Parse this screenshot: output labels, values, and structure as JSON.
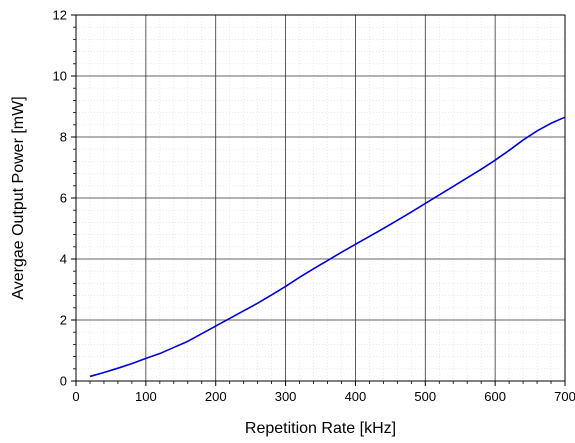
{
  "chart_data": {
    "type": "line",
    "title": "",
    "xlabel": "Repetition Rate [kHz]",
    "ylabel": "Avergae Output Power [mW]",
    "xlim": [
      0,
      700
    ],
    "ylim": [
      0,
      12
    ],
    "x_ticks": [
      0,
      100,
      200,
      300,
      400,
      500,
      600,
      700
    ],
    "y_ticks": [
      0,
      2,
      4,
      6,
      8,
      10,
      12
    ],
    "x_tick_labels": [
      "0",
      "100",
      "200",
      "300",
      "400",
      "500",
      "600",
      "700"
    ],
    "y_tick_labels": [
      "0",
      "2",
      "4",
      "6",
      "8",
      "10",
      "12"
    ],
    "x_minor_step": 20,
    "y_minor_step": 0.4,
    "grid": true,
    "legend": false,
    "colors": {
      "line": "#0000dd",
      "major_grid": "#333333",
      "minor_grid": "#dcdcdc",
      "axis": "#000000"
    },
    "series": [
      {
        "x": [
          20,
          40,
          60,
          80,
          100,
          120,
          140,
          160,
          180,
          200,
          220,
          240,
          260,
          280,
          300,
          320,
          340,
          360,
          380,
          400,
          420,
          440,
          460,
          480,
          500,
          520,
          540,
          560,
          580,
          600,
          620,
          640,
          660,
          680,
          700
        ],
        "values": [
          0.15,
          0.28,
          0.42,
          0.57,
          0.74,
          0.9,
          1.1,
          1.3,
          1.55,
          1.8,
          2.05,
          2.3,
          2.55,
          2.82,
          3.1,
          3.4,
          3.68,
          3.95,
          4.22,
          4.48,
          4.74,
          5.0,
          5.27,
          5.54,
          5.82,
          6.1,
          6.38,
          6.66,
          6.94,
          7.24,
          7.56,
          7.9,
          8.2,
          8.45,
          8.65
        ]
      }
    ]
  }
}
